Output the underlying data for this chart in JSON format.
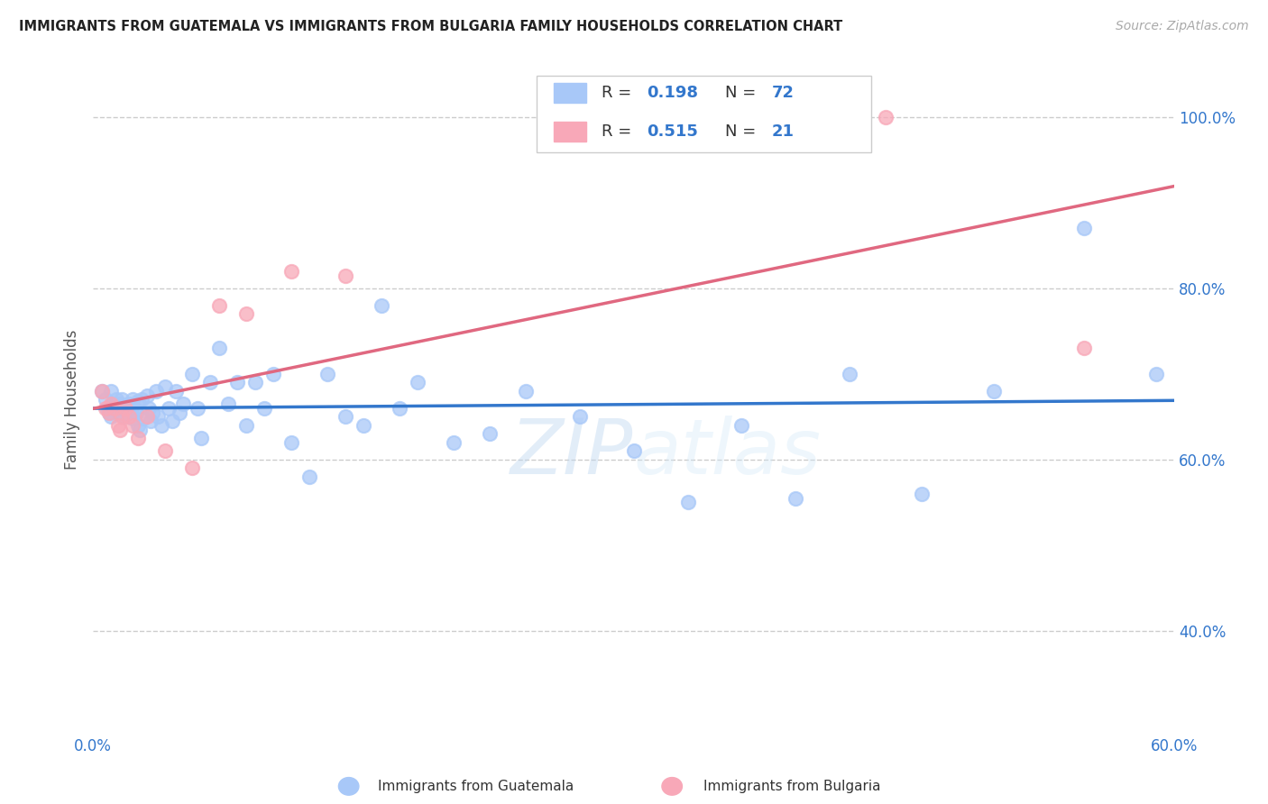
{
  "title": "IMMIGRANTS FROM GUATEMALA VS IMMIGRANTS FROM BULGARIA FAMILY HOUSEHOLDS CORRELATION CHART",
  "source": "Source: ZipAtlas.com",
  "ylabel": "Family Households",
  "xmin": 0.0,
  "xmax": 0.6,
  "ymin": 0.28,
  "ymax": 1.06,
  "yticks": [
    0.4,
    0.6,
    0.8,
    1.0
  ],
  "ytick_labels": [
    "40.0%",
    "60.0%",
    "80.0%",
    "100.0%"
  ],
  "xticks": [
    0.0,
    0.1,
    0.2,
    0.3,
    0.4,
    0.5,
    0.6
  ],
  "xtick_labels": [
    "0.0%",
    "",
    "",
    "",
    "",
    "",
    "60.0%"
  ],
  "color_guatemala": "#a8c8f8",
  "color_bulgaria": "#f8a8b8",
  "color_line_guatemala": "#3377cc",
  "color_line_bulgaria": "#e06880",
  "color_accent": "#3377cc",
  "guatemala_x": [
    0.005,
    0.007,
    0.008,
    0.009,
    0.01,
    0.01,
    0.011,
    0.012,
    0.013,
    0.014,
    0.015,
    0.015,
    0.016,
    0.017,
    0.018,
    0.019,
    0.02,
    0.021,
    0.022,
    0.022,
    0.023,
    0.024,
    0.025,
    0.025,
    0.026,
    0.027,
    0.028,
    0.03,
    0.031,
    0.032,
    0.033,
    0.035,
    0.036,
    0.038,
    0.04,
    0.042,
    0.044,
    0.046,
    0.048,
    0.05,
    0.055,
    0.058,
    0.06,
    0.065,
    0.07,
    0.075,
    0.08,
    0.085,
    0.09,
    0.095,
    0.1,
    0.11,
    0.12,
    0.13,
    0.14,
    0.15,
    0.16,
    0.17,
    0.18,
    0.2,
    0.22,
    0.24,
    0.27,
    0.3,
    0.33,
    0.36,
    0.39,
    0.42,
    0.46,
    0.5,
    0.55,
    0.59
  ],
  "guatemala_y": [
    0.68,
    0.67,
    0.66,
    0.655,
    0.68,
    0.65,
    0.665,
    0.66,
    0.67,
    0.655,
    0.665,
    0.66,
    0.67,
    0.65,
    0.66,
    0.655,
    0.665,
    0.658,
    0.67,
    0.648,
    0.66,
    0.655,
    0.668,
    0.64,
    0.635,
    0.67,
    0.648,
    0.675,
    0.66,
    0.645,
    0.655,
    0.68,
    0.65,
    0.64,
    0.685,
    0.66,
    0.645,
    0.68,
    0.655,
    0.665,
    0.7,
    0.66,
    0.625,
    0.69,
    0.73,
    0.665,
    0.69,
    0.64,
    0.69,
    0.66,
    0.7,
    0.62,
    0.58,
    0.7,
    0.65,
    0.64,
    0.78,
    0.66,
    0.69,
    0.62,
    0.63,
    0.68,
    0.65,
    0.61,
    0.55,
    0.64,
    0.555,
    0.7,
    0.56,
    0.68,
    0.87,
    0.7
  ],
  "bulgaria_x": [
    0.005,
    0.007,
    0.009,
    0.01,
    0.012,
    0.014,
    0.015,
    0.016,
    0.018,
    0.02,
    0.022,
    0.025,
    0.03,
    0.04,
    0.055,
    0.07,
    0.085,
    0.11,
    0.14,
    0.44,
    0.55
  ],
  "bulgaria_y": [
    0.68,
    0.66,
    0.655,
    0.665,
    0.66,
    0.64,
    0.635,
    0.65,
    0.66,
    0.65,
    0.64,
    0.625,
    0.65,
    0.61,
    0.59,
    0.78,
    0.77,
    0.82,
    0.815,
    1.0,
    0.73
  ],
  "watermark_zip": "ZIP",
  "watermark_atlas": "atlas",
  "background_color": "#ffffff",
  "grid_color": "#cccccc"
}
